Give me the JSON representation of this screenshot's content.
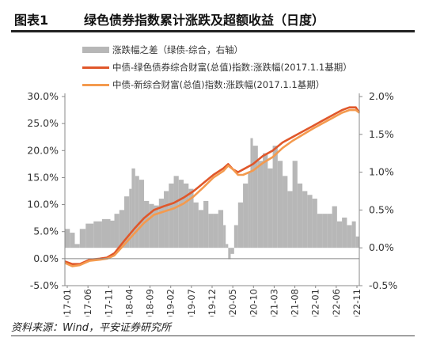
{
  "header": {
    "figure_label": "图表1",
    "title": "绿色债券指数累计涨跌及超额收益（日度）"
  },
  "source": "资料来源：Wind，平安证券研究所",
  "chart_data": {
    "type": "bar",
    "title": "绿色债券指数累计涨跌及超额收益（日度）",
    "xlabel": "",
    "ylabel": "",
    "y2label": "",
    "grid": false,
    "legend_position": "top",
    "ylim": [
      -0.05,
      0.3
    ],
    "y2lim": [
      -0.005,
      0.02
    ],
    "y_ticks": [
      "30.0%",
      "25.0%",
      "20.0%",
      "15.0%",
      "10.0%",
      "5.0%",
      "0.0%",
      "-5.0%"
    ],
    "y2_ticks": [
      "2.0%",
      "1.5%",
      "1.0%",
      "0.5%",
      "0.0%",
      "-0.5%"
    ],
    "categories": [
      "2017-01",
      "2017-06",
      "2017-11",
      "2018-04",
      "2018-09",
      "2019-02",
      "2019-07",
      "2019-12",
      "2020-05",
      "2020-10",
      "2021-03",
      "2021-08",
      "2022-01",
      "2022-06",
      "2022-11"
    ],
    "series": [
      {
        "name": "涨跌幅之差（绿债-综合，右轴）",
        "kind": "bar",
        "axis": "right",
        "color": "#b7b7b7",
        "x": [
          2017.0,
          2017.1,
          2017.2,
          2017.3,
          2017.42,
          2017.58,
          2017.75,
          2017.92,
          2018.0,
          2018.1,
          2018.2,
          2018.3,
          2018.35,
          2018.42,
          2018.5,
          2018.6,
          2018.7,
          2018.8,
          2018.9,
          2019.0,
          2019.1,
          2019.2,
          2019.3,
          2019.4,
          2019.5,
          2019.6,
          2019.7,
          2019.8,
          2019.9,
          2020.0,
          2020.1,
          2020.2,
          2020.25,
          2020.3,
          2020.35,
          2020.42,
          2020.5,
          2020.6,
          2020.7,
          2020.75,
          2020.8,
          2020.9,
          2021.0,
          2021.1,
          2021.2,
          2021.3,
          2021.4,
          2021.5,
          2021.6,
          2021.7,
          2021.8,
          2021.9,
          2022.0,
          2022.1,
          2022.2,
          2022.3,
          2022.4,
          2022.5,
          2022.6,
          2022.7,
          2022.8,
          2022.88
        ],
        "values": [
          0.0025,
          0.002,
          0.0005,
          0.0025,
          0.0032,
          0.0035,
          0.0038,
          0.0036,
          0.0045,
          0.005,
          0.0068,
          0.0078,
          0.0105,
          0.0095,
          0.009,
          0.0062,
          0.0058,
          0.0056,
          0.0065,
          0.0075,
          0.0085,
          0.0095,
          0.009,
          0.0085,
          0.0078,
          0.006,
          0.005,
          0.0062,
          0.0045,
          0.0045,
          0.005,
          0.003,
          0.0005,
          -0.0015,
          -0.0008,
          0.003,
          0.006,
          0.0085,
          0.01,
          0.0145,
          0.0135,
          0.0115,
          0.0125,
          0.0105,
          0.0135,
          0.0115,
          0.0095,
          0.0075,
          0.0115,
          0.0085,
          0.0075,
          0.007,
          0.0065,
          0.0045,
          0.0045,
          0.0045,
          0.0055,
          0.0035,
          0.004,
          0.003,
          0.0035,
          0.0015
        ]
      },
      {
        "name": "中债-绿色债券综合财富(总值)指数:涨跌幅(2017.1.1基期）",
        "kind": "line",
        "axis": "left",
        "color": "#e0572a",
        "x": [
          2017.0,
          2017.15,
          2017.3,
          2017.5,
          2017.7,
          2017.85,
          2018.0,
          2018.2,
          2018.4,
          2018.6,
          2018.8,
          2019.0,
          2019.2,
          2019.4,
          2019.6,
          2019.8,
          2020.0,
          2020.2,
          2020.3,
          2020.4,
          2020.5,
          2020.6,
          2020.8,
          2021.0,
          2021.2,
          2021.4,
          2021.6,
          2021.8,
          2022.0,
          2022.2,
          2022.4,
          2022.6,
          2022.75,
          2022.88,
          2022.95
        ],
        "values": [
          -0.005,
          -0.01,
          -0.01,
          -0.002,
          0.0,
          0.002,
          0.01,
          0.033,
          0.055,
          0.075,
          0.09,
          0.097,
          0.103,
          0.113,
          0.125,
          0.14,
          0.155,
          0.167,
          0.175,
          0.165,
          0.16,
          0.165,
          0.175,
          0.19,
          0.2,
          0.215,
          0.225,
          0.235,
          0.245,
          0.255,
          0.265,
          0.275,
          0.28,
          0.28,
          0.27
        ]
      },
      {
        "name": "中债-新综合财富(总值)指数:涨跌幅(2017.1.1基期）",
        "kind": "line",
        "axis": "left",
        "color": "#f49a4e",
        "x": [
          2017.0,
          2017.15,
          2017.3,
          2017.5,
          2017.7,
          2017.85,
          2018.0,
          2018.2,
          2018.4,
          2018.6,
          2018.8,
          2019.0,
          2019.2,
          2019.4,
          2019.6,
          2019.8,
          2020.0,
          2020.2,
          2020.3,
          2020.4,
          2020.5,
          2020.6,
          2020.8,
          2021.0,
          2021.2,
          2021.4,
          2021.6,
          2021.8,
          2022.0,
          2022.2,
          2022.4,
          2022.6,
          2022.75,
          2022.88,
          2022.95
        ],
        "values": [
          -0.008,
          -0.014,
          -0.012,
          -0.004,
          -0.002,
          0.0,
          0.006,
          0.026,
          0.046,
          0.066,
          0.081,
          0.087,
          0.093,
          0.102,
          0.115,
          0.132,
          0.15,
          0.162,
          0.172,
          0.165,
          0.155,
          0.155,
          0.163,
          0.177,
          0.188,
          0.205,
          0.218,
          0.229,
          0.24,
          0.25,
          0.26,
          0.27,
          0.275,
          0.275,
          0.27
        ]
      }
    ]
  }
}
